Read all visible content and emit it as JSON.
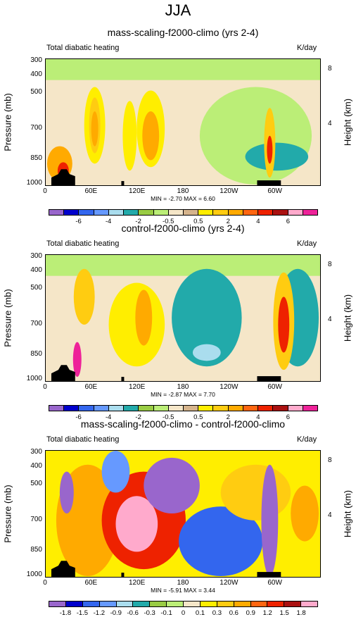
{
  "main_title": "JJA",
  "chart_data": [
    {
      "type": "heatmap",
      "title": "mass-scaling-f2000-climo (yrs 2-4)",
      "subtitle_left": "Total diabatic heating",
      "subtitle_right": "K/day",
      "ylabel": "Pressure (mb)",
      "y2label": "Height (km)",
      "x_ticks": [
        "0",
        "60E",
        "120E",
        "180",
        "120W",
        "60W"
      ],
      "y_ticks": [
        "300",
        "400",
        "500",
        "700",
        "850",
        "1000"
      ],
      "y2_ticks": [
        "8",
        "4"
      ],
      "stats": "MIN = -2.70  MAX = 6.60",
      "colorbar_labels": [
        "-6",
        "-4",
        "-2",
        "-0.5",
        "0.5",
        "2",
        "4",
        "6"
      ],
      "colorbar_colors": [
        "#9966cc",
        "#0000cc",
        "#3366ee",
        "#6699ff",
        "#aaddee",
        "#22aaaa",
        "#99cc44",
        "#bbee77",
        "#f5e6c8",
        "#d6b48c",
        "#ffee00",
        "#ffcc11",
        "#ffaa00",
        "#ff6611",
        "#ee2200",
        "#aa1111",
        "#ffaacc",
        "#ee2299"
      ]
    },
    {
      "type": "heatmap",
      "title": "control-f2000-climo (yrs 2-4)",
      "subtitle_left": "Total diabatic heating",
      "subtitle_right": "K/day",
      "ylabel": "Pressure (mb)",
      "y2label": "Height (km)",
      "x_ticks": [
        "0",
        "60E",
        "120E",
        "180",
        "120W",
        "60W"
      ],
      "y_ticks": [
        "300",
        "400",
        "500",
        "700",
        "850",
        "1000"
      ],
      "y2_ticks": [
        "8",
        "4"
      ],
      "stats": "MIN = -2.87  MAX = 7.70",
      "colorbar_labels": [
        "-6",
        "-4",
        "-2",
        "-0.5",
        "0.5",
        "2",
        "4",
        "6"
      ],
      "colorbar_colors": [
        "#9966cc",
        "#0000cc",
        "#3366ee",
        "#6699ff",
        "#aaddee",
        "#22aaaa",
        "#99cc44",
        "#bbee77",
        "#f5e6c8",
        "#d6b48c",
        "#ffee00",
        "#ffcc11",
        "#ffaa00",
        "#ff6611",
        "#ee2200",
        "#aa1111",
        "#ffaacc",
        "#ee2299"
      ]
    },
    {
      "type": "heatmap",
      "title": "mass-scaling-f2000-climo - control-f2000-climo",
      "subtitle_left": "Total diabatic heating",
      "subtitle_right": "K/day",
      "ylabel": "Pressure (mb)",
      "y2label": "Height (km)",
      "x_ticks": [
        "0",
        "60E",
        "120E",
        "180",
        "120W",
        "60W"
      ],
      "y_ticks": [
        "300",
        "400",
        "500",
        "700",
        "850",
        "1000"
      ],
      "y2_ticks": [
        "8",
        "4"
      ],
      "stats": "MIN = -5.91  MAX =  3.44",
      "colorbar_labels": [
        "-1.8",
        "-1.5",
        "-1.2",
        "-0.9",
        "-0.6",
        "-0.3",
        "-0.1",
        "0",
        "0.1",
        "0.3",
        "0.6",
        "0.9",
        "1.2",
        "1.5",
        "1.8"
      ],
      "colorbar_colors": [
        "#9966cc",
        "#0000cc",
        "#3366ee",
        "#6699ff",
        "#aaddee",
        "#22aaaa",
        "#99cc44",
        "#bbee77",
        "#f5e6c8",
        "#ffee00",
        "#ffcc11",
        "#ffaa00",
        "#ff6611",
        "#ee2200",
        "#aa1111",
        "#ffaacc"
      ]
    }
  ]
}
